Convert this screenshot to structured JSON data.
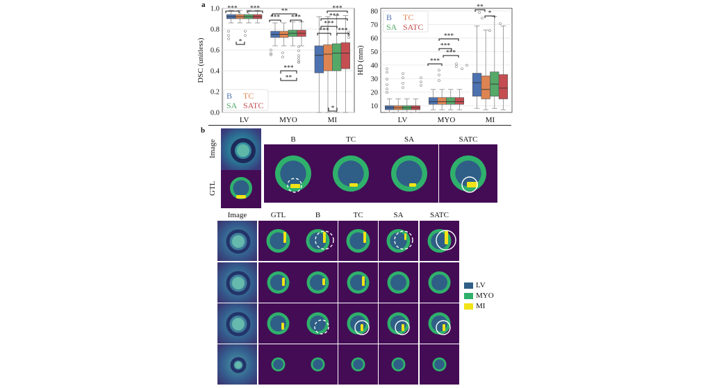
{
  "panel_a": {
    "letter": "a",
    "dsc_chart": {
      "ylabel": "DSC (unitless)",
      "yticks": [
        "1.0",
        "0.8",
        "0.6",
        "0.4",
        "0.2",
        "0.0"
      ],
      "categories": [
        "LV",
        "MYO",
        "MI"
      ],
      "legend": [
        "B",
        "TC",
        "SA",
        "SATC"
      ],
      "sig": [
        "***",
        "***",
        "*",
        "**",
        "***",
        "***",
        "***",
        "**",
        "***",
        "***",
        "***",
        "***",
        "***",
        "*"
      ]
    },
    "hd_chart": {
      "ylabel": "HD (mm)",
      "yticks": [
        "80",
        "70",
        "60",
        "50",
        "40",
        "30",
        "20",
        "10"
      ],
      "categories": [
        "LV",
        "MYO",
        "MI"
      ],
      "legend": [
        "B",
        "TC",
        "SA",
        "SATC"
      ],
      "sig": [
        "***",
        "***",
        "***",
        "***",
        "**",
        "*"
      ]
    }
  },
  "panel_b": {
    "letter": "b",
    "top_rows": [
      "Image",
      "GTL"
    ],
    "top_cols": [
      "B",
      "TC",
      "SA",
      "SATC"
    ],
    "bottom_cols": [
      "Image",
      "GTL",
      "B",
      "TC",
      "SA",
      "SATC"
    ],
    "legend": [
      {
        "label": "LV",
        "color": "#2f5f86"
      },
      {
        "label": "MYO",
        "color": "#2fb16c"
      },
      {
        "label": "MI",
        "color": "#f2e316"
      }
    ]
  },
  "chart_data": [
    {
      "type": "box",
      "title": "",
      "xlabel": "",
      "ylabel": "DSC (unitless)",
      "ylim": [
        0,
        1.0
      ],
      "categories": [
        "LV",
        "MYO",
        "MI"
      ],
      "series": [
        {
          "name": "B",
          "color": "#4c72b0",
          "boxes": [
            {
              "q1": 0.9,
              "med": 0.92,
              "q3": 0.94,
              "lo": 0.86,
              "hi": 0.98
            },
            {
              "q1": 0.72,
              "med": 0.75,
              "q3": 0.78,
              "lo": 0.64,
              "hi": 0.86
            },
            {
              "q1": 0.38,
              "med": 0.55,
              "q3": 0.64,
              "lo": 0.0,
              "hi": 0.92
            }
          ]
        },
        {
          "name": "TC",
          "color": "#dd8452",
          "boxes": [
            {
              "q1": 0.9,
              "med": 0.92,
              "q3": 0.94,
              "lo": 0.86,
              "hi": 0.98
            },
            {
              "q1": 0.72,
              "med": 0.75,
              "q3": 0.78,
              "lo": 0.64,
              "hi": 0.86
            },
            {
              "q1": 0.4,
              "med": 0.56,
              "q3": 0.65,
              "lo": 0.0,
              "hi": 0.92
            }
          ]
        },
        {
          "name": "SA",
          "color": "#55a868",
          "boxes": [
            {
              "q1": 0.9,
              "med": 0.92,
              "q3": 0.94,
              "lo": 0.86,
              "hi": 0.98
            },
            {
              "q1": 0.73,
              "med": 0.76,
              "q3": 0.79,
              "lo": 0.64,
              "hi": 0.87
            },
            {
              "q1": 0.4,
              "med": 0.57,
              "q3": 0.66,
              "lo": 0.0,
              "hi": 0.93
            }
          ]
        },
        {
          "name": "SATC",
          "color": "#c44e52",
          "boxes": [
            {
              "q1": 0.9,
              "med": 0.92,
              "q3": 0.94,
              "lo": 0.86,
              "hi": 0.98
            },
            {
              "q1": 0.73,
              "med": 0.76,
              "q3": 0.79,
              "lo": 0.64,
              "hi": 0.87
            },
            {
              "q1": 0.42,
              "med": 0.57,
              "q3": 0.67,
              "lo": 0.0,
              "hi": 0.93
            }
          ]
        }
      ]
    },
    {
      "type": "box",
      "title": "",
      "xlabel": "",
      "ylabel": "HD (mm)",
      "ylim": [
        5,
        82
      ],
      "categories": [
        "LV",
        "MYO",
        "MI"
      ],
      "series": [
        {
          "name": "B",
          "color": "#4c72b0",
          "boxes": [
            {
              "q1": 7,
              "med": 8.5,
              "q3": 10,
              "lo": 5,
              "hi": 15
            },
            {
              "q1": 11,
              "med": 13,
              "q3": 16,
              "lo": 7,
              "hi": 22
            },
            {
              "q1": 17,
              "med": 27,
              "q3": 34,
              "lo": 8,
              "hi": 69
            }
          ]
        },
        {
          "name": "TC",
          "color": "#dd8452",
          "boxes": [
            {
              "q1": 7,
              "med": 8.5,
              "q3": 10,
              "lo": 5,
              "hi": 15
            },
            {
              "q1": 11,
              "med": 13,
              "q3": 16,
              "lo": 7,
              "hi": 22
            },
            {
              "q1": 15,
              "med": 22,
              "q3": 32,
              "lo": 7,
              "hi": 66
            }
          ]
        },
        {
          "name": "SA",
          "color": "#55a868",
          "boxes": [
            {
              "q1": 7,
              "med": 8.5,
              "q3": 10,
              "lo": 5,
              "hi": 15
            },
            {
              "q1": 11,
              "med": 13,
              "q3": 16,
              "lo": 7,
              "hi": 22
            },
            {
              "q1": 17,
              "med": 26,
              "q3": 35,
              "lo": 8,
              "hi": 76
            }
          ]
        },
        {
          "name": "SATC",
          "color": "#c44e52",
          "boxes": [
            {
              "q1": 7,
              "med": 8.5,
              "q3": 10,
              "lo": 5,
              "hi": 15
            },
            {
              "q1": 11,
              "med": 13,
              "q3": 16,
              "lo": 7,
              "hi": 22
            },
            {
              "q1": 15,
              "med": 23,
              "q3": 33,
              "lo": 7,
              "hi": 69
            }
          ]
        }
      ]
    }
  ]
}
